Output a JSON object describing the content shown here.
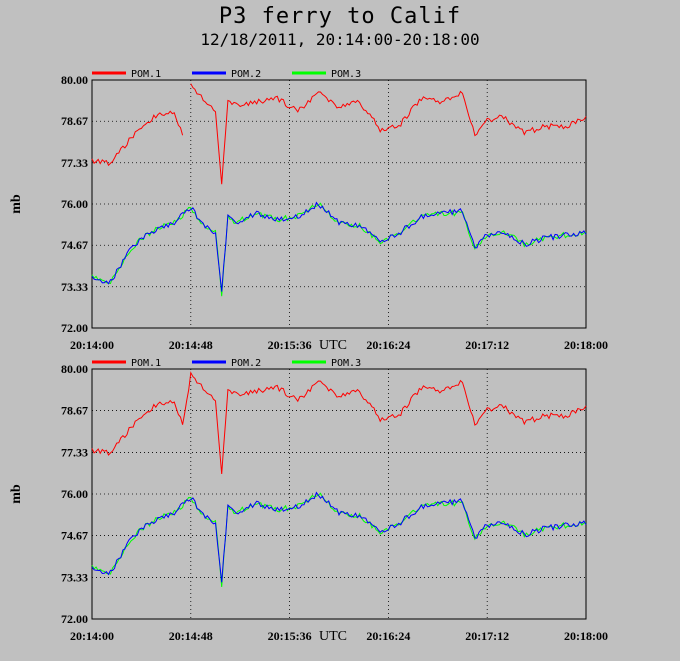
{
  "title": "P3 ferry to Calif",
  "subtitle": "12/18/2011, 20:14:00-20:18:00",
  "colors": {
    "background": "#c0c0c0",
    "plot_area": "#c0c0c0",
    "pom1": "#ff0000",
    "pom2": "#0000ff",
    "pom3": "#00ff00"
  },
  "chart_data": [
    {
      "type": "line",
      "ylabel": "mb",
      "xlabel_unit": "UTC",
      "ylim": [
        72.0,
        80.0
      ],
      "xlim": [
        "20:14:00",
        "20:18:00"
      ],
      "y_ticks": [
        "80.00",
        "78.67",
        "77.33",
        "76.00",
        "74.67",
        "73.33",
        "72.00"
      ],
      "x_ticks": [
        "20:14:00",
        "20:14:48",
        "20:15:36",
        "20:16:24",
        "20:17:12",
        "20:18:00"
      ],
      "grid": true,
      "legend_position": "top-left",
      "series": [
        {
          "name": "POM.1",
          "color": "#ff0000",
          "x": [
            "20:14:00",
            "20:14:08",
            "20:14:12",
            "20:14:16",
            "20:14:24",
            "20:14:32",
            "20:14:40",
            "20:14:44",
            "20:14:48",
            "20:14:54",
            "20:15:00",
            "20:15:03",
            "20:15:06",
            "20:15:10",
            "20:15:20",
            "20:15:30",
            "20:15:40",
            "20:15:50",
            "20:16:00",
            "20:16:10",
            "20:16:20",
            "20:16:30",
            "20:16:40",
            "20:16:50",
            "20:17:00",
            "20:17:06",
            "20:17:12",
            "20:17:20",
            "20:17:30",
            "20:17:40",
            "20:17:50",
            "20:18:00"
          ],
          "y": [
            77.4,
            77.3,
            77.6,
            77.9,
            78.5,
            78.9,
            79.0,
            78.2,
            79.8,
            79.4,
            79.0,
            76.7,
            79.3,
            79.2,
            79.3,
            79.4,
            79.0,
            79.6,
            79.1,
            79.3,
            78.4,
            78.6,
            79.4,
            79.3,
            79.6,
            78.2,
            78.7,
            78.8,
            78.3,
            78.5,
            78.5,
            78.8
          ],
          "gap_after": "20:14:44"
        },
        {
          "name": "POM.2",
          "color": "#0000ff",
          "x": [
            "20:14:00",
            "20:14:08",
            "20:14:12",
            "20:14:16",
            "20:14:24",
            "20:14:32",
            "20:14:40",
            "20:14:48",
            "20:14:54",
            "20:15:00",
            "20:15:03",
            "20:15:06",
            "20:15:10",
            "20:15:20",
            "20:15:30",
            "20:15:40",
            "20:15:50",
            "20:16:00",
            "20:16:10",
            "20:16:20",
            "20:16:30",
            "20:16:40",
            "20:16:50",
            "20:17:00",
            "20:17:06",
            "20:17:12",
            "20:17:20",
            "20:17:30",
            "20:17:40",
            "20:17:50",
            "20:18:00"
          ],
          "y": [
            73.7,
            73.4,
            73.8,
            74.3,
            74.9,
            75.2,
            75.4,
            75.9,
            75.3,
            75.1,
            73.2,
            75.6,
            75.4,
            75.7,
            75.5,
            75.6,
            76.0,
            75.4,
            75.3,
            74.8,
            75.1,
            75.6,
            75.7,
            75.8,
            74.6,
            75.0,
            75.1,
            74.7,
            74.9,
            75.0,
            75.1
          ]
        },
        {
          "name": "POM.3",
          "color": "#00ff00",
          "x": [
            "20:14:00",
            "20:14:08",
            "20:14:12",
            "20:14:16",
            "20:14:24",
            "20:14:32",
            "20:14:40",
            "20:14:48",
            "20:14:54",
            "20:15:00",
            "20:15:03",
            "20:15:06",
            "20:15:10",
            "20:15:20",
            "20:15:30",
            "20:15:40",
            "20:15:50",
            "20:16:00",
            "20:16:10",
            "20:16:20",
            "20:16:30",
            "20:16:40",
            "20:16:50",
            "20:17:00",
            "20:17:06",
            "20:17:12",
            "20:17:20",
            "20:17:30",
            "20:17:40",
            "20:17:50",
            "20:18:00"
          ],
          "y": [
            73.7,
            73.4,
            73.8,
            74.3,
            74.9,
            75.2,
            75.4,
            75.9,
            75.3,
            75.1,
            73.1,
            75.6,
            75.4,
            75.7,
            75.5,
            75.6,
            76.0,
            75.4,
            75.3,
            74.8,
            75.1,
            75.6,
            75.7,
            75.7,
            74.6,
            75.0,
            75.1,
            74.7,
            74.9,
            75.0,
            75.1
          ]
        }
      ]
    },
    {
      "type": "line",
      "ylabel": "mb",
      "xlabel_unit": "UTC",
      "ylim": [
        72.0,
        80.0
      ],
      "xlim": [
        "20:14:00",
        "20:18:00"
      ],
      "y_ticks": [
        "80.00",
        "78.67",
        "77.33",
        "76.00",
        "74.67",
        "73.33",
        "72.00"
      ],
      "x_ticks": [
        "20:14:00",
        "20:14:48",
        "20:15:36",
        "20:16:24",
        "20:17:12",
        "20:18:00"
      ],
      "grid": true,
      "legend_position": "top-left",
      "series": [
        {
          "name": "POM.1",
          "color": "#ff0000",
          "x": [
            "20:14:00",
            "20:14:08",
            "20:14:12",
            "20:14:16",
            "20:14:24",
            "20:14:32",
            "20:14:40",
            "20:14:44",
            "20:14:48",
            "20:14:54",
            "20:15:00",
            "20:15:03",
            "20:15:06",
            "20:15:10",
            "20:15:20",
            "20:15:30",
            "20:15:40",
            "20:15:50",
            "20:16:00",
            "20:16:10",
            "20:16:20",
            "20:16:30",
            "20:16:40",
            "20:16:50",
            "20:17:00",
            "20:17:06",
            "20:17:12",
            "20:17:20",
            "20:17:30",
            "20:17:40",
            "20:17:50",
            "20:18:00"
          ],
          "y": [
            77.4,
            77.3,
            77.6,
            77.9,
            78.5,
            78.9,
            79.0,
            78.2,
            79.8,
            79.4,
            79.0,
            76.7,
            79.3,
            79.2,
            79.3,
            79.4,
            79.0,
            79.6,
            79.1,
            79.3,
            78.4,
            78.6,
            79.4,
            79.3,
            79.6,
            78.2,
            78.7,
            78.8,
            78.3,
            78.5,
            78.5,
            78.8
          ]
        },
        {
          "name": "POM.2",
          "color": "#0000ff",
          "x": [
            "20:14:00",
            "20:14:08",
            "20:14:12",
            "20:14:16",
            "20:14:24",
            "20:14:32",
            "20:14:40",
            "20:14:48",
            "20:14:54",
            "20:15:00",
            "20:15:03",
            "20:15:06",
            "20:15:10",
            "20:15:20",
            "20:15:30",
            "20:15:40",
            "20:15:50",
            "20:16:00",
            "20:16:10",
            "20:16:20",
            "20:16:30",
            "20:16:40",
            "20:16:50",
            "20:17:00",
            "20:17:06",
            "20:17:12",
            "20:17:20",
            "20:17:30",
            "20:17:40",
            "20:17:50",
            "20:18:00"
          ],
          "y": [
            73.7,
            73.4,
            73.8,
            74.3,
            74.9,
            75.2,
            75.4,
            75.9,
            75.3,
            75.1,
            73.2,
            75.6,
            75.4,
            75.7,
            75.5,
            75.6,
            76.0,
            75.4,
            75.3,
            74.8,
            75.1,
            75.6,
            75.7,
            75.8,
            74.6,
            75.0,
            75.1,
            74.7,
            74.9,
            75.0,
            75.1
          ]
        },
        {
          "name": "POM.3",
          "color": "#00ff00",
          "x": [
            "20:14:00",
            "20:14:08",
            "20:14:12",
            "20:14:16",
            "20:14:24",
            "20:14:32",
            "20:14:40",
            "20:14:48",
            "20:14:54",
            "20:15:00",
            "20:15:03",
            "20:15:06",
            "20:15:10",
            "20:15:20",
            "20:15:30",
            "20:15:40",
            "20:15:50",
            "20:16:00",
            "20:16:10",
            "20:16:20",
            "20:16:30",
            "20:16:40",
            "20:16:50",
            "20:17:00",
            "20:17:06",
            "20:17:12",
            "20:17:20",
            "20:17:30",
            "20:17:40",
            "20:17:50",
            "20:18:00"
          ],
          "y": [
            73.7,
            73.4,
            73.8,
            74.3,
            74.9,
            75.2,
            75.4,
            75.9,
            75.3,
            75.1,
            73.1,
            75.6,
            75.4,
            75.7,
            75.5,
            75.6,
            76.0,
            75.4,
            75.3,
            74.8,
            75.1,
            75.6,
            75.7,
            75.7,
            74.6,
            75.0,
            75.1,
            74.7,
            74.9,
            75.0,
            75.1
          ]
        }
      ]
    }
  ]
}
